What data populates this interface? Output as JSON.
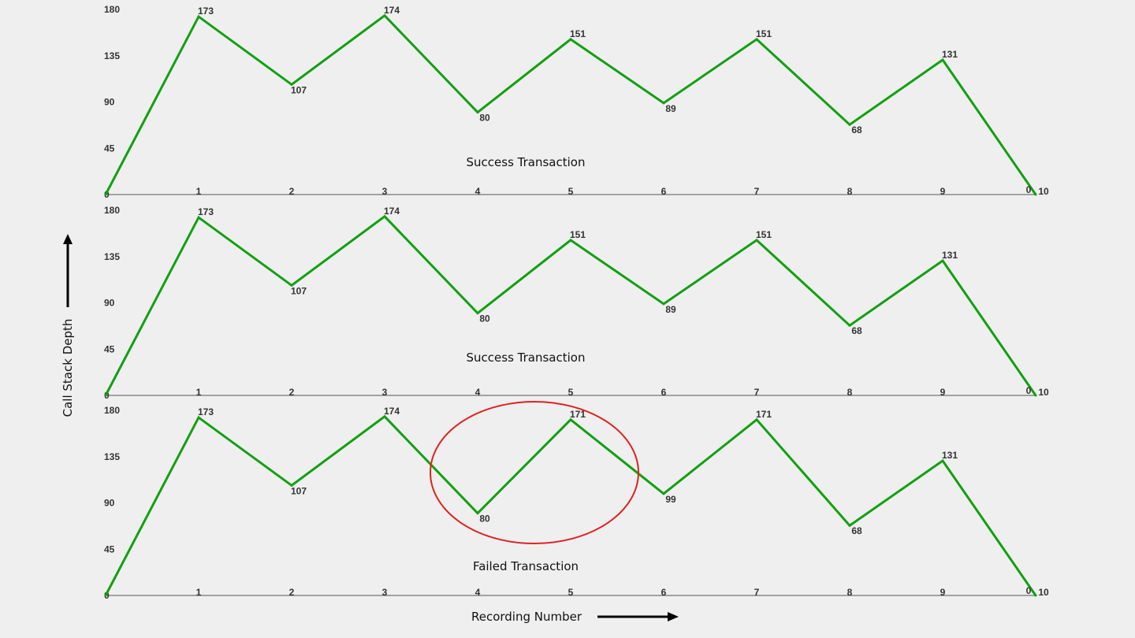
{
  "chart_data": [
    {
      "type": "line",
      "title": "Success Transaction",
      "x": [
        0,
        1,
        2,
        3,
        4,
        5,
        6,
        7,
        8,
        9,
        10
      ],
      "values": [
        0,
        173,
        107,
        174,
        80,
        151,
        89,
        151,
        68,
        131,
        0
      ],
      "data_labels": [
        "",
        "173",
        "107",
        "174",
        "80",
        "151",
        "89",
        "151",
        "68",
        "131",
        "0"
      ],
      "xticks": [
        "",
        "1",
        "2",
        "3",
        "4",
        "5",
        "6",
        "7",
        "8",
        "9",
        "10"
      ],
      "yticks": [
        "0",
        "45",
        "90",
        "135",
        "180"
      ],
      "ylim": [
        0,
        180
      ],
      "xlim": [
        0,
        10
      ],
      "grid": false
    },
    {
      "type": "line",
      "title": "Success Transaction",
      "x": [
        0,
        1,
        2,
        3,
        4,
        5,
        6,
        7,
        8,
        9,
        10
      ],
      "values": [
        0,
        173,
        107,
        174,
        80,
        151,
        89,
        151,
        68,
        131,
        0
      ],
      "data_labels": [
        "",
        "173",
        "107",
        "174",
        "80",
        "151",
        "89",
        "151",
        "68",
        "131",
        "0"
      ],
      "xticks": [
        "",
        "1",
        "2",
        "3",
        "4",
        "5",
        "6",
        "7",
        "8",
        "9",
        "10"
      ],
      "yticks": [
        "0",
        "45",
        "90",
        "135",
        "180"
      ],
      "ylim": [
        0,
        180
      ],
      "xlim": [
        0,
        10
      ],
      "grid": false
    },
    {
      "type": "line",
      "title": "Failed Transaction",
      "x": [
        0,
        1,
        2,
        3,
        4,
        5,
        6,
        7,
        8,
        9,
        10
      ],
      "values": [
        0,
        173,
        107,
        174,
        80,
        171,
        99,
        171,
        68,
        131,
        0
      ],
      "data_labels": [
        "",
        "173",
        "107",
        "174",
        "80",
        "171",
        "99",
        "171",
        "68",
        "131",
        "0"
      ],
      "xticks": [
        "",
        "1",
        "2",
        "3",
        "4",
        "5",
        "6",
        "7",
        "8",
        "9",
        "10"
      ],
      "yticks": [
        "0",
        "45",
        "90",
        "135",
        "180"
      ],
      "ylim": [
        0,
        180
      ],
      "xlim": [
        0,
        10
      ],
      "grid": false,
      "highlight": {
        "x_range": [
          4,
          6
        ],
        "color": "#e02020"
      }
    }
  ],
  "axes": {
    "ylabel": "Call Stack Depth",
    "xlabel": "Recording Number"
  },
  "colors": {
    "series": "#12a012",
    "highlight": "#e02020",
    "background": "#efefef"
  }
}
